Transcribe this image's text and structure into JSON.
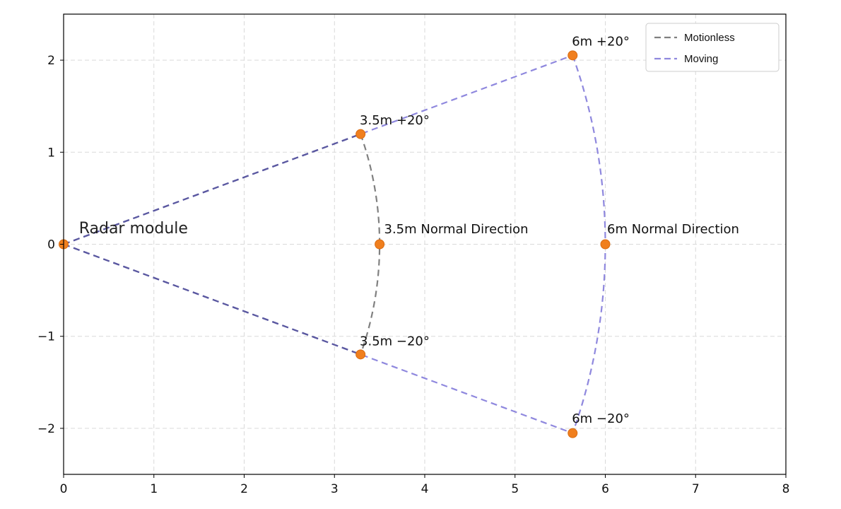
{
  "chart_data": {
    "type": "scatter",
    "title": "",
    "xlabel": "",
    "ylabel": "",
    "xlim": [
      0,
      8
    ],
    "ylim": [
      -2.5,
      2.5
    ],
    "x_ticks": [
      0,
      1,
      2,
      3,
      4,
      5,
      6,
      7,
      8
    ],
    "y_ticks": [
      -2,
      -1,
      0,
      1,
      2
    ],
    "grid": true,
    "legend_position": "top-right",
    "colors": {
      "motionless": "#808080",
      "moving": "#8f88de",
      "point": "#f07f1e",
      "overlap": "#5a58a0"
    },
    "series": [
      {
        "name": "Motionless",
        "style": "dashed",
        "color": "#808080",
        "range_m": 3.5,
        "angle_deg": 20,
        "x": [
          0,
          3.289,
          3.5,
          3.289,
          0
        ],
        "y": [
          0,
          1.197,
          0,
          -1.197,
          0
        ]
      },
      {
        "name": "Moving",
        "style": "dashed",
        "color": "#8f88de",
        "range_m": 6,
        "angle_deg": 20,
        "x": [
          0,
          5.638,
          6,
          5.638,
          0
        ],
        "y": [
          0,
          2.052,
          0,
          -2.052,
          0
        ]
      }
    ],
    "points": [
      {
        "x": 0,
        "y": 0
      },
      {
        "x": 3.289,
        "y": 1.197
      },
      {
        "x": 3.5,
        "y": 0
      },
      {
        "x": 3.289,
        "y": -1.197
      },
      {
        "x": 5.638,
        "y": 2.052
      },
      {
        "x": 6,
        "y": 0
      },
      {
        "x": 5.638,
        "y": -2.052
      }
    ],
    "annotations": [
      {
        "text": "Radar module",
        "x": 0.17,
        "y": 0.12,
        "size": "large"
      },
      {
        "text": "3.5m  +20°",
        "x": 3.28,
        "y": 1.3
      },
      {
        "text": "3.5m Normal Direction",
        "x": 3.55,
        "y": 0.12
      },
      {
        "text": "3.5m  −20°",
        "x": 3.28,
        "y": -1.1
      },
      {
        "text": "6m  +20°",
        "x": 5.63,
        "y": 2.16
      },
      {
        "text": "6m Normal Direction",
        "x": 6.02,
        "y": 0.12
      },
      {
        "text": "6m  −20°",
        "x": 5.63,
        "y": -1.94
      }
    ]
  }
}
